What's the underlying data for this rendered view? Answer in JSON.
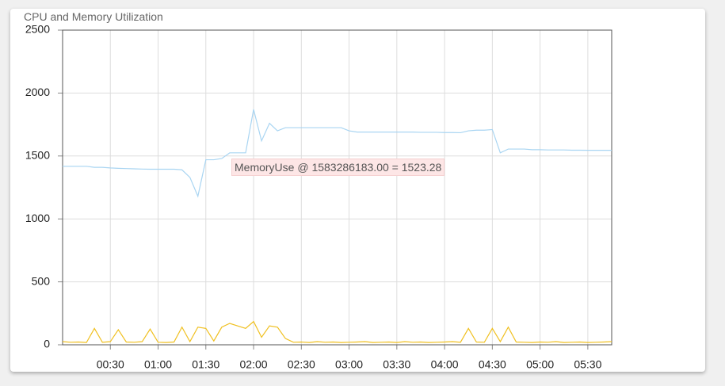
{
  "chart_data": {
    "type": "line",
    "title": "CPU and Memory Utilization",
    "x": [
      0,
      5,
      10,
      15,
      20,
      25,
      30,
      35,
      40,
      45,
      50,
      55,
      60,
      65,
      70,
      75,
      80,
      85,
      90,
      95,
      100,
      105,
      110,
      115,
      120,
      125,
      130,
      135,
      140,
      145,
      150,
      155,
      160,
      165,
      170,
      175,
      180,
      185,
      190,
      195,
      200,
      205,
      210,
      215,
      220,
      225,
      230,
      235,
      240,
      245,
      250,
      255,
      260,
      265,
      270,
      275,
      280,
      285,
      290,
      295,
      300,
      305,
      310,
      315,
      320,
      325,
      330,
      335,
      340,
      345
    ],
    "series": [
      {
        "color": "#a9d5f2",
        "values": [
          1418,
          1418,
          1418,
          1418,
          1410,
          1410,
          1405,
          1402,
          1400,
          1398,
          1396,
          1395,
          1395,
          1395,
          1395,
          1390,
          1330,
          1180,
          1470,
          1470,
          1480,
          1525,
          1525,
          1525,
          1870,
          1620,
          1760,
          1700,
          1725,
          1725,
          1725,
          1725,
          1725,
          1725,
          1725,
          1725,
          1700,
          1690,
          1690,
          1690,
          1690,
          1690,
          1690,
          1690,
          1690,
          1688,
          1688,
          1688,
          1686,
          1686,
          1685,
          1700,
          1705,
          1705,
          1710,
          1525,
          1555,
          1555,
          1555,
          1550,
          1550,
          1548,
          1548,
          1548,
          1546,
          1546,
          1545,
          1545,
          1545,
          1545
        ]
      },
      {
        "color": "#f0c020",
        "values": [
          25,
          20,
          22,
          18,
          130,
          20,
          25,
          120,
          22,
          20,
          25,
          125,
          20,
          18,
          22,
          140,
          25,
          140,
          130,
          30,
          140,
          170,
          150,
          130,
          185,
          60,
          150,
          140,
          50,
          20,
          22,
          18,
          25,
          20,
          22,
          18,
          20,
          22,
          25,
          18,
          20,
          22,
          18,
          25,
          20,
          22,
          18,
          20,
          22,
          25,
          20,
          130,
          22,
          20,
          130,
          25,
          140,
          22,
          20,
          18,
          22,
          20,
          25,
          18,
          20,
          22,
          18,
          20,
          22,
          25
        ]
      }
    ],
    "xlim": [
      0,
      345
    ],
    "ylim": [
      0,
      2500
    ],
    "xticks": [
      {
        "value": 30,
        "label": "00:30"
      },
      {
        "value": 60,
        "label": "01:00"
      },
      {
        "value": 90,
        "label": "01:30"
      },
      {
        "value": 120,
        "label": "02:00"
      },
      {
        "value": 150,
        "label": "02:30"
      },
      {
        "value": 180,
        "label": "03:00"
      },
      {
        "value": 210,
        "label": "03:30"
      },
      {
        "value": 240,
        "label": "04:00"
      },
      {
        "value": 270,
        "label": "04:30"
      },
      {
        "value": 300,
        "label": "05:00"
      },
      {
        "value": 330,
        "label": "05:30"
      }
    ],
    "yticks": [
      0,
      500,
      1000,
      1500,
      2000,
      2500
    ],
    "grid": true,
    "tooltip": "MemoryUse @ 1583286183.00 = 1523.28"
  }
}
